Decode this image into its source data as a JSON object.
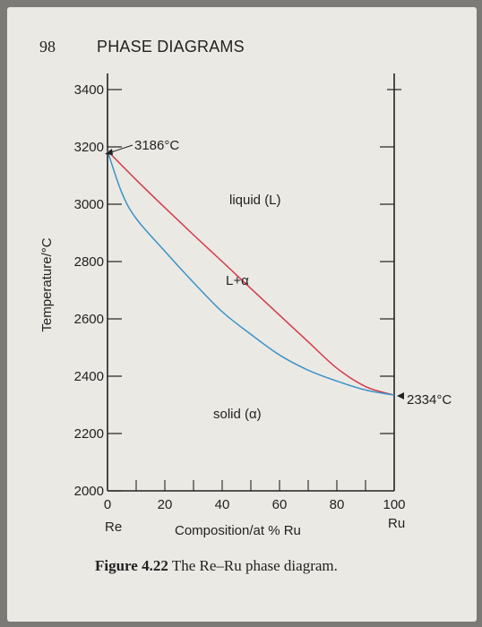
{
  "header": {
    "page_number": "98",
    "section_title": "PHASE DIAGRAMS"
  },
  "caption": {
    "figure_label": "Figure 4.22",
    "text": "The Re–Ru phase diagram."
  },
  "chart_data": {
    "type": "line",
    "ylabel": "Temperature/°C",
    "xlabel": "Composition/at % Ru",
    "xlim": [
      0,
      100
    ],
    "ylim": [
      2000,
      3400
    ],
    "x_ticks": [
      0,
      20,
      40,
      60,
      80,
      100
    ],
    "y_ticks": [
      2000,
      2200,
      2400,
      2600,
      2800,
      3000,
      3200,
      3400
    ],
    "x_end_labels": {
      "left": "Re",
      "right": "Ru"
    },
    "series": [
      {
        "color": "#d23b49",
        "points": [
          [
            0,
            3186
          ],
          [
            10,
            3085
          ],
          [
            20,
            2988
          ],
          [
            30,
            2893
          ],
          [
            40,
            2800
          ],
          [
            50,
            2706
          ],
          [
            60,
            2613
          ],
          [
            70,
            2520
          ],
          [
            80,
            2428
          ],
          [
            90,
            2364
          ],
          [
            100,
            2334
          ]
        ]
      },
      {
        "color": "#3b93c7",
        "points": [
          [
            0,
            3186
          ],
          [
            5,
            3040
          ],
          [
            10,
            2950
          ],
          [
            20,
            2836
          ],
          [
            30,
            2727
          ],
          [
            40,
            2625
          ],
          [
            50,
            2546
          ],
          [
            60,
            2474
          ],
          [
            70,
            2421
          ],
          [
            80,
            2383
          ],
          [
            90,
            2352
          ],
          [
            100,
            2334
          ]
        ]
      }
    ],
    "region_labels": {
      "liquid": "liquid (L)",
      "two_phase": "L+α",
      "solid": "solid (α)"
    },
    "annotations": {
      "re_melting": "3186°C",
      "ru_point": "2334°C"
    }
  }
}
